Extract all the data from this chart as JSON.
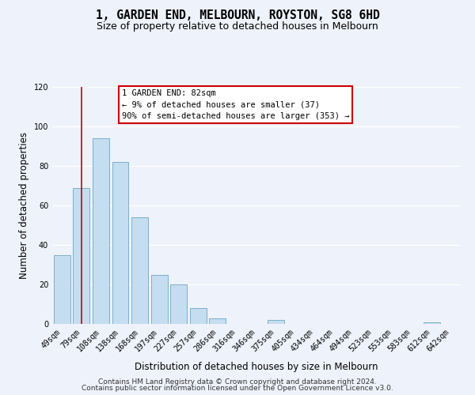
{
  "title": "1, GARDEN END, MELBOURN, ROYSTON, SG8 6HD",
  "subtitle": "Size of property relative to detached houses in Melbourn",
  "xlabel": "Distribution of detached houses by size in Melbourn",
  "ylabel": "Number of detached properties",
  "categories": [
    "49sqm",
    "79sqm",
    "108sqm",
    "138sqm",
    "168sqm",
    "197sqm",
    "227sqm",
    "257sqm",
    "286sqm",
    "316sqm",
    "346sqm",
    "375sqm",
    "405sqm",
    "434sqm",
    "464sqm",
    "494sqm",
    "523sqm",
    "553sqm",
    "583sqm",
    "612sqm",
    "642sqm"
  ],
  "values": [
    35,
    69,
    94,
    82,
    54,
    25,
    20,
    8,
    3,
    0,
    0,
    2,
    0,
    0,
    0,
    0,
    0,
    0,
    0,
    1,
    0
  ],
  "bar_color": "#c5ddf0",
  "bar_edge_color": "#7ab0cc",
  "ylim": [
    0,
    120
  ],
  "yticks": [
    0,
    20,
    40,
    60,
    80,
    100,
    120
  ],
  "vline_x": 1.5,
  "vline_color": "#cc0000",
  "annotation_title": "1 GARDEN END: 82sqm",
  "annotation_line1": "← 9% of detached houses are smaller (37)",
  "annotation_line2": "90% of semi-detached houses are larger (353) →",
  "annotation_box_color": "#ffffff",
  "annotation_box_edge_color": "#cc0000",
  "footer1": "Contains HM Land Registry data © Crown copyright and database right 2024.",
  "footer2": "Contains public sector information licensed under the Open Government Licence v3.0.",
  "background_color": "#eef2fa",
  "grid_color": "#ffffff",
  "title_fontsize": 10.5,
  "subtitle_fontsize": 9,
  "axis_label_fontsize": 8.5,
  "tick_fontsize": 7,
  "annotation_fontsize": 7.5,
  "footer_fontsize": 6.5
}
